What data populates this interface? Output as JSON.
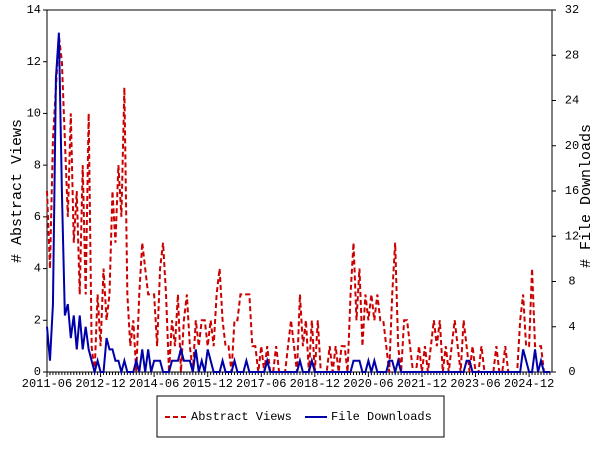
{
  "chart_data": {
    "type": "line",
    "ylabel": "# Abstract Views",
    "y2label": "# File Downloads",
    "categories": [
      "2011-06",
      null,
      null,
      null,
      null,
      null,
      null,
      null,
      null,
      null,
      null,
      null,
      null,
      null,
      null,
      null,
      null,
      null,
      "2012-12",
      null,
      null,
      null,
      null,
      null,
      null,
      null,
      null,
      null,
      null,
      null,
      null,
      null,
      null,
      null,
      null,
      null,
      "2014-06",
      null,
      null,
      null,
      null,
      null,
      null,
      null,
      null,
      null,
      null,
      null,
      null,
      null,
      null,
      null,
      null,
      null,
      "2015-12",
      null,
      null,
      null,
      null,
      null,
      null,
      null,
      null,
      null,
      null,
      null,
      null,
      null,
      null,
      null,
      null,
      null,
      "2017-06",
      null,
      null,
      null,
      null,
      null,
      null,
      null,
      null,
      null,
      null,
      null,
      null,
      null,
      null,
      null,
      null,
      null,
      "2018-12",
      null,
      null,
      null,
      null,
      null,
      null,
      null,
      null,
      null,
      null,
      null,
      null,
      null,
      null,
      null,
      null,
      null,
      "2020-06",
      null,
      null,
      null,
      null,
      null,
      null,
      null,
      null,
      null,
      null,
      null,
      null,
      null,
      null,
      null,
      null,
      null,
      "2021-12",
      null,
      null,
      null,
      null,
      null,
      null,
      null,
      null,
      null,
      null,
      null,
      null,
      null,
      null,
      null,
      null,
      null,
      "2023-06",
      null,
      null,
      null,
      null,
      null,
      null,
      null,
      null,
      null,
      null,
      null,
      null,
      null,
      null,
      null,
      null,
      null,
      "2024-12",
      null,
      null,
      null,
      null,
      null,
      null,
      null
    ],
    "series": [
      {
        "name": "Abstract Views",
        "color": "#cc0000",
        "dash": true,
        "values": [
          7,
          4,
          9,
          11,
          13,
          12,
          9,
          6,
          10,
          5,
          7,
          3,
          8,
          3,
          10,
          1,
          0,
          3,
          1,
          4,
          2,
          3,
          7,
          5,
          8,
          6,
          11,
          3,
          1,
          2,
          0,
          3,
          5,
          4,
          3,
          3,
          3,
          1,
          4,
          5,
          3,
          0,
          2,
          1,
          3,
          0,
          2,
          3,
          1,
          0,
          2,
          1,
          2,
          2,
          1,
          2,
          1,
          3,
          4,
          2,
          1,
          1,
          0,
          2,
          2,
          3,
          3,
          3,
          3,
          1,
          1,
          0,
          1,
          0,
          1,
          0,
          0,
          1,
          0,
          0,
          0,
          1,
          2,
          1,
          0,
          3,
          1,
          2,
          0,
          2,
          0,
          2,
          0,
          0,
          0,
          1,
          0,
          1,
          0,
          1,
          1,
          0,
          3,
          5,
          2,
          4,
          1,
          3,
          2,
          3,
          2,
          3,
          2,
          2,
          1,
          0,
          3,
          5,
          1,
          0,
          2,
          2,
          1,
          0,
          0,
          1,
          0,
          1,
          0,
          1,
          2,
          1,
          2,
          0,
          1,
          0,
          1,
          2,
          1,
          0,
          2,
          1,
          0,
          1,
          0,
          0,
          1,
          0,
          0,
          0,
          0,
          1,
          0,
          0,
          1,
          0,
          0,
          0,
          0,
          2,
          3,
          1,
          1,
          4,
          1,
          1,
          1,
          0,
          0,
          0
        ]
      },
      {
        "name": "File Downloads",
        "color": "#0000aa",
        "axis": "y2",
        "values": [
          4,
          1,
          6,
          26,
          30,
          16,
          5,
          6,
          3,
          5,
          2,
          5,
          2,
          4,
          2,
          1,
          0,
          1,
          0,
          0,
          3,
          2,
          2,
          1,
          1,
          0,
          1,
          0,
          0,
          0,
          1,
          0,
          2,
          0,
          2,
          0,
          1,
          1,
          1,
          0,
          0,
          0,
          1,
          1,
          1,
          2,
          1,
          1,
          1,
          0,
          2,
          0,
          1,
          0,
          2,
          1,
          0,
          0,
          0,
          1,
          0,
          0,
          0,
          1,
          0,
          0,
          0,
          1,
          0,
          0,
          0,
          0,
          0,
          0,
          1,
          0,
          0,
          0,
          0,
          0,
          0,
          0,
          0,
          0,
          0,
          1,
          0,
          0,
          0,
          1,
          0,
          0,
          0,
          0,
          0,
          0,
          0,
          0,
          0,
          0,
          0,
          0,
          0,
          1,
          1,
          1,
          0,
          0,
          1,
          0,
          1,
          0,
          0,
          0,
          0,
          1,
          1,
          0,
          1,
          0,
          0,
          0,
          0,
          0,
          0,
          0,
          0,
          0,
          0,
          0,
          0,
          0,
          0,
          0,
          0,
          0,
          0,
          0,
          0,
          0,
          0,
          1,
          1,
          0,
          0,
          0,
          0,
          0,
          0,
          0,
          0,
          0,
          0,
          0,
          0,
          0,
          0,
          0,
          0,
          0,
          2,
          1,
          0,
          0,
          2,
          0,
          1,
          0,
          0,
          0
        ]
      }
    ],
    "ylim": [
      0,
      14
    ],
    "yticks": [
      0,
      2,
      4,
      6,
      8,
      10,
      12,
      14
    ],
    "y2lim": [
      0,
      32
    ],
    "y2ticks": [
      0,
      4,
      8,
      12,
      16,
      20,
      24,
      28,
      32
    ],
    "legend": "bottom"
  }
}
